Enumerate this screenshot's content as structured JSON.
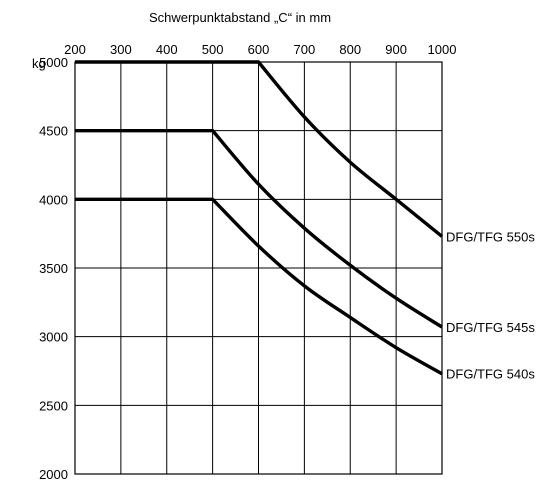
{
  "chart_data": {
    "type": "line",
    "title": "Schwerpunktabstand „C“ in mm",
    "ylabel": "kg",
    "xlim": [
      200,
      1000
    ],
    "ylim": [
      2000,
      5000
    ],
    "x_ticks": [
      200,
      300,
      400,
      500,
      600,
      700,
      800,
      900,
      1000
    ],
    "y_ticks": [
      5000,
      4500,
      4000,
      3500,
      3000,
      2500,
      2000
    ],
    "grid": true,
    "x_axis_position": "top",
    "series": [
      {
        "name": "DFG/TFG 550s",
        "x": [
          200,
          600,
          700,
          800,
          900,
          1000
        ],
        "y": [
          5000,
          5000,
          4600,
          4270,
          4000,
          3730
        ]
      },
      {
        "name": "DFG/TFG 545s",
        "x": [
          200,
          500,
          600,
          700,
          800,
          900,
          1000
        ],
        "y": [
          4500,
          4500,
          4110,
          3790,
          3520,
          3280,
          3070
        ]
      },
      {
        "name": "DFG/TFG 540s",
        "x": [
          200,
          500,
          600,
          700,
          800,
          900,
          1000
        ],
        "y": [
          4000,
          4000,
          3660,
          3370,
          3140,
          2920,
          2730
        ]
      }
    ]
  }
}
